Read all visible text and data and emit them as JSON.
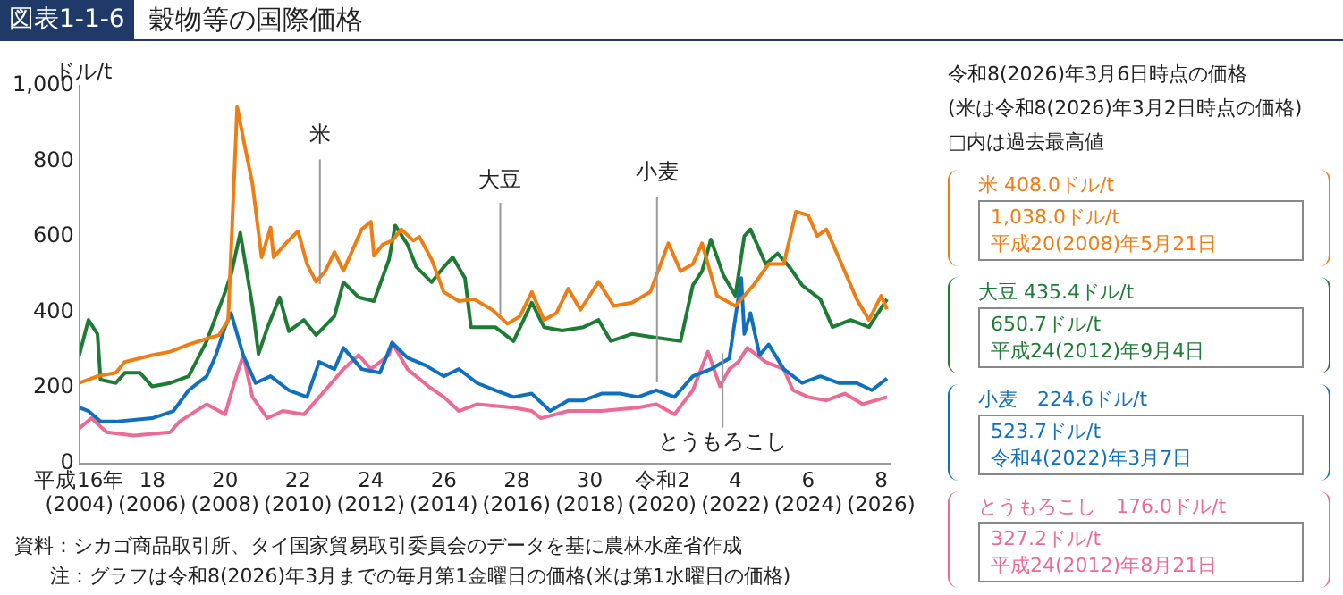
{
  "chart_data": {
    "type": "line",
    "title": "穀物等の国際価格",
    "subtitle": "図表1-1-6",
    "ylabel": "ドル/t",
    "xlim": [
      "2004-01",
      "2026-04"
    ],
    "xticks": [
      {
        "value": "2004-01",
        "label": "平成16年\n(2004)"
      },
      {
        "value": "2006-01",
        "label": "18\n(2006)"
      },
      {
        "value": "2008-01",
        "label": "20\n(2008)"
      },
      {
        "value": "2010-01",
        "label": "22\n(2010)"
      },
      {
        "value": "2012-01",
        "label": "24\n(2012)"
      },
      {
        "value": "2014-01",
        "label": "26\n(2014)"
      },
      {
        "value": "2016-01",
        "label": "28\n(2016)"
      },
      {
        "value": "2018-01",
        "label": "30\n(2018)"
      },
      {
        "value": "2020-01",
        "label": "令和2\n(2020)"
      },
      {
        "value": "2022-01",
        "label": "4\n(2022)"
      },
      {
        "value": "2024-01",
        "label": "6\n(2024)"
      },
      {
        "value": "2026-01",
        "label": "8\n(2026)"
      }
    ],
    "ylim": [
      0,
      1000
    ],
    "yticks": [
      0,
      200,
      400,
      600,
      800,
      {
        "value": 1000,
        "label": "1,000"
      }
    ],
    "grid": false,
    "legend": false,
    "marker": "none",
    "line_style": "solid",
    "series": [
      {
        "name": "米",
        "color": "#ee7d14",
        "x": [
          "2004-01",
          "2004-07",
          "2005-01",
          "2005-04",
          "2006-01",
          "2006-07",
          "2007-01",
          "2007-07",
          "2007-11",
          "2008-02",
          "2008-05",
          "2008-07",
          "2008-10",
          "2009-01",
          "2009-04",
          "2009-05",
          "2009-09",
          "2010-01",
          "2010-04",
          "2010-07",
          "2010-10",
          "2011-01",
          "2011-04",
          "2011-10",
          "2012-01",
          "2012-02",
          "2012-05",
          "2012-08",
          "2012-11",
          "2013-03",
          "2013-05",
          "2013-09",
          "2014-01",
          "2014-06",
          "2014-11",
          "2015-05",
          "2015-10",
          "2016-02",
          "2016-06",
          "2016-10",
          "2017-02",
          "2017-06",
          "2017-10",
          "2018-04",
          "2018-09",
          "2019-03",
          "2019-09",
          "2020-03",
          "2020-07",
          "2020-11",
          "2021-02",
          "2021-07",
          "2022-01",
          "2022-07",
          "2022-12",
          "2023-05",
          "2023-09",
          "2024-01",
          "2024-04",
          "2024-07",
          "2024-12",
          "2025-05",
          "2025-09",
          "2026-01",
          "2026-03"
        ],
        "values": [
          213,
          231,
          240,
          269,
          287,
          296,
          315,
          330,
          340,
          380,
          944,
          861,
          741,
          546,
          625,
          546,
          583,
          615,
          528,
          481,
          509,
          560,
          510,
          620,
          640,
          550,
          580,
          590,
          620,
          590,
          600,
          540,
          454,
          430,
          435,
          407,
          370,
          389,
          454,
          380,
          398,
          463,
          407,
          481,
          417,
          426,
          454,
          583,
          509,
          528,
          583,
          444,
          417,
          472,
          528,
          528,
          667,
          657,
          602,
          620,
          528,
          435,
          380,
          444,
          408
        ]
      },
      {
        "name": "大豆",
        "color": "#1e7b34",
        "x": [
          "2004-01",
          "2004-04",
          "2004-07",
          "2004-08",
          "2005-01",
          "2005-04",
          "2005-09",
          "2006-01",
          "2006-07",
          "2007-01",
          "2007-07",
          "2008-01",
          "2008-03",
          "2008-06",
          "2008-10",
          "2008-12",
          "2009-03",
          "2009-07",
          "2009-10",
          "2010-03",
          "2010-07",
          "2011-01",
          "2011-04",
          "2011-09",
          "2012-02",
          "2012-07",
          "2012-09",
          "2013-01",
          "2013-04",
          "2013-09",
          "2014-01",
          "2014-04",
          "2014-08",
          "2014-10",
          "2015-06",
          "2015-12",
          "2016-06",
          "2016-10",
          "2017-04",
          "2017-11",
          "2018-04",
          "2018-08",
          "2019-03",
          "2019-11",
          "2020-07",
          "2020-11",
          "2021-02",
          "2021-05",
          "2021-09",
          "2022-01",
          "2022-04",
          "2022-06",
          "2022-11",
          "2023-03",
          "2023-07",
          "2023-11",
          "2024-05",
          "2024-09",
          "2025-03",
          "2025-09",
          "2026-03"
        ],
        "values": [
          287,
          380,
          343,
          222,
          213,
          240,
          240,
          204,
          213,
          231,
          324,
          454,
          500,
          611,
          417,
          290,
          360,
          440,
          350,
          380,
          340,
          390,
          480,
          440,
          430,
          540,
          630,
          580,
          520,
          480,
          520,
          546,
          491,
          361,
          361,
          324,
          426,
          361,
          352,
          361,
          380,
          324,
          343,
          333,
          324,
          472,
          509,
          593,
          500,
          444,
          602,
          620,
          528,
          556,
          519,
          472,
          435,
          361,
          380,
          361,
          435
        ]
      },
      {
        "name": "小麦",
        "color": "#1070c0",
        "x": [
          "2004-01",
          "2004-04",
          "2004-08",
          "2005-01",
          "2006-01",
          "2006-08",
          "2007-01",
          "2007-07",
          "2007-10",
          "2008-01",
          "2008-03",
          "2008-07",
          "2008-11",
          "2009-04",
          "2009-10",
          "2010-04",
          "2010-08",
          "2011-01",
          "2011-04",
          "2011-10",
          "2012-04",
          "2012-08",
          "2013-01",
          "2013-07",
          "2014-01",
          "2014-06",
          "2014-12",
          "2015-06",
          "2015-12",
          "2016-06",
          "2016-12",
          "2017-06",
          "2017-11",
          "2018-05",
          "2018-11",
          "2019-05",
          "2019-11",
          "2020-05",
          "2020-11",
          "2021-05",
          "2021-11",
          "2022-03",
          "2022-04",
          "2022-06",
          "2022-09",
          "2022-12",
          "2023-05",
          "2023-11",
          "2024-05",
          "2024-11",
          "2025-05",
          "2025-10",
          "2026-03"
        ],
        "values": [
          148,
          139,
          111,
          111,
          120,
          139,
          194,
          231,
          287,
          361,
          398,
          287,
          213,
          231,
          194,
          176,
          269,
          250,
          306,
          250,
          240,
          320,
          280,
          260,
          231,
          250,
          213,
          194,
          176,
          185,
          139,
          167,
          167,
          185,
          185,
          176,
          194,
          176,
          231,
          250,
          278,
          491,
          343,
          398,
          287,
          315,
          250,
          213,
          231,
          213,
          213,
          194,
          225
        ]
      },
      {
        "name": "とうもろこし",
        "color": "#ec6a94",
        "x": [
          "2004-01",
          "2004-05",
          "2004-10",
          "2005-07",
          "2006-07",
          "2006-10",
          "2007-07",
          "2008-01",
          "2008-04",
          "2008-07",
          "2008-10",
          "2009-03",
          "2009-08",
          "2010-03",
          "2010-09",
          "2011-04",
          "2011-09",
          "2012-01",
          "2012-07",
          "2012-08",
          "2013-01",
          "2013-08",
          "2014-01",
          "2014-06",
          "2014-12",
          "2015-12",
          "2016-06",
          "2016-09",
          "2017-06",
          "2018-05",
          "2019-05",
          "2019-11",
          "2020-05",
          "2020-11",
          "2021-04",
          "2021-08",
          "2021-11",
          "2022-02",
          "2022-05",
          "2022-11",
          "2023-05",
          "2023-08",
          "2024-01",
          "2024-07",
          "2025-01",
          "2025-07",
          "2026-03"
        ],
        "values": [
          93,
          120,
          83,
          74,
          83,
          111,
          157,
          130,
          213,
          287,
          176,
          120,
          139,
          130,
          185,
          250,
          287,
          250,
          287,
          320,
          250,
          204,
          176,
          139,
          157,
          148,
          139,
          120,
          139,
          139,
          148,
          157,
          130,
          194,
          296,
          204,
          250,
          269,
          306,
          269,
          250,
          194,
          176,
          167,
          185,
          157,
          176
        ]
      }
    ],
    "annotations": [
      "令和8(2026)年3月6日時点の価格",
      "(米は令和8(2026)年3月2日時点の価格)",
      "□内は過去最高値",
      "米 408.0ドル/t",
      "1,038.0ドル/t",
      "平成20(2008)年5月21日",
      "大豆 435.4ドル/t",
      "650.7ドル/t",
      "平成24(2012)年9月4日",
      "小麦　224.6ドル/t",
      "523.7ドル/t",
      "令和4(2022)年3月7日",
      "とうもろこし　176.0ドル/t",
      "327.2ドル/t",
      "平成24(2012)年8月21日",
      "資料：シカゴ商品取引所、タイ国家貿易取引委員会のデータを基に農林水産省作成",
      "注：グラフは令和8(2026)年3月までの毎月第1金曜日の価格(米は第1水曜日の価格)"
    ]
  }
}
